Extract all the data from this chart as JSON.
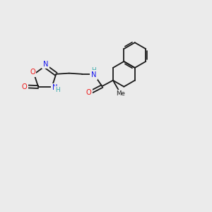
{
  "bg_color": "#ebebeb",
  "bond_color": "#1a1a1a",
  "bw": 1.3,
  "colors": {
    "N": "#1515ee",
    "O": "#ee1515",
    "H": "#3aacac",
    "C": "#1a1a1a"
  },
  "figsize": [
    3.0,
    3.0
  ],
  "dpi": 100
}
